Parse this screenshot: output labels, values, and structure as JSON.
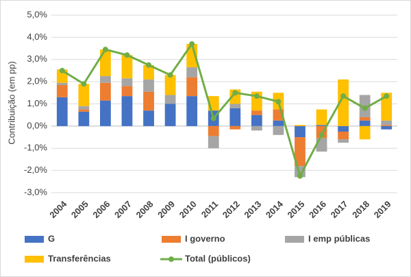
{
  "chart_data": {
    "type": "bar",
    "stacked": true,
    "y_label": "Contribuição (em pp)",
    "categories": [
      "2004",
      "2005",
      "2006",
      "2007",
      "2008",
      "2009",
      "2010",
      "2011",
      "2012",
      "2013",
      "2014",
      "2015",
      "2016",
      "2017",
      "2018",
      "2019"
    ],
    "series": [
      {
        "name": "G",
        "color": "#4472c4",
        "values": [
          1.3,
          0.65,
          1.15,
          1.35,
          0.7,
          1.0,
          1.35,
          0.7,
          0.8,
          0.5,
          0.25,
          -0.5,
          0.05,
          -0.25,
          0.25,
          -0.15
        ]
      },
      {
        "name": "I governo",
        "color": "#ed7d31",
        "values": [
          0.55,
          0.1,
          0.8,
          0.45,
          0.85,
          0.0,
          0.85,
          -0.45,
          -0.15,
          0.2,
          0.5,
          -1.3,
          -0.55,
          -0.35,
          0.15,
          0.05
        ]
      },
      {
        "name": "I emp públicas",
        "color": "#a5a5a5",
        "values": [
          0.1,
          0.15,
          0.3,
          0.35,
          0.55,
          0.4,
          0.45,
          -0.55,
          0.2,
          -0.2,
          -0.4,
          -0.5,
          -0.6,
          -0.15,
          1.0,
          0.2
        ]
      },
      {
        "name": "Transferências",
        "color": "#ffc000",
        "values": [
          0.6,
          1.0,
          1.2,
          1.05,
          0.65,
          0.9,
          1.05,
          0.65,
          0.65,
          0.85,
          0.75,
          0.05,
          0.7,
          2.1,
          -0.6,
          1.25
        ]
      },
      {
        "name": "Total (públicos)",
        "color": "#70ad47",
        "type": "line",
        "values": [
          2.5,
          1.9,
          3.45,
          3.2,
          2.75,
          2.3,
          3.7,
          0.35,
          1.5,
          1.35,
          1.1,
          -2.25,
          -0.4,
          1.35,
          0.8,
          1.35
        ]
      }
    ],
    "ylim": [
      -3,
      5
    ],
    "yticks": [
      {
        "value": -3,
        "label": "-3,0%"
      },
      {
        "value": -2,
        "label": "-2,0%"
      },
      {
        "value": -1,
        "label": "-1,0%"
      },
      {
        "value": 0,
        "label": "0,0%"
      },
      {
        "value": 1,
        "label": "1,0%"
      },
      {
        "value": 2,
        "label": "2,0%"
      },
      {
        "value": 3,
        "label": "3,0%"
      },
      {
        "value": 4,
        "label": "4,0%"
      },
      {
        "value": 5,
        "label": "5,0%"
      }
    ],
    "grid": true,
    "legend": "bottom"
  }
}
